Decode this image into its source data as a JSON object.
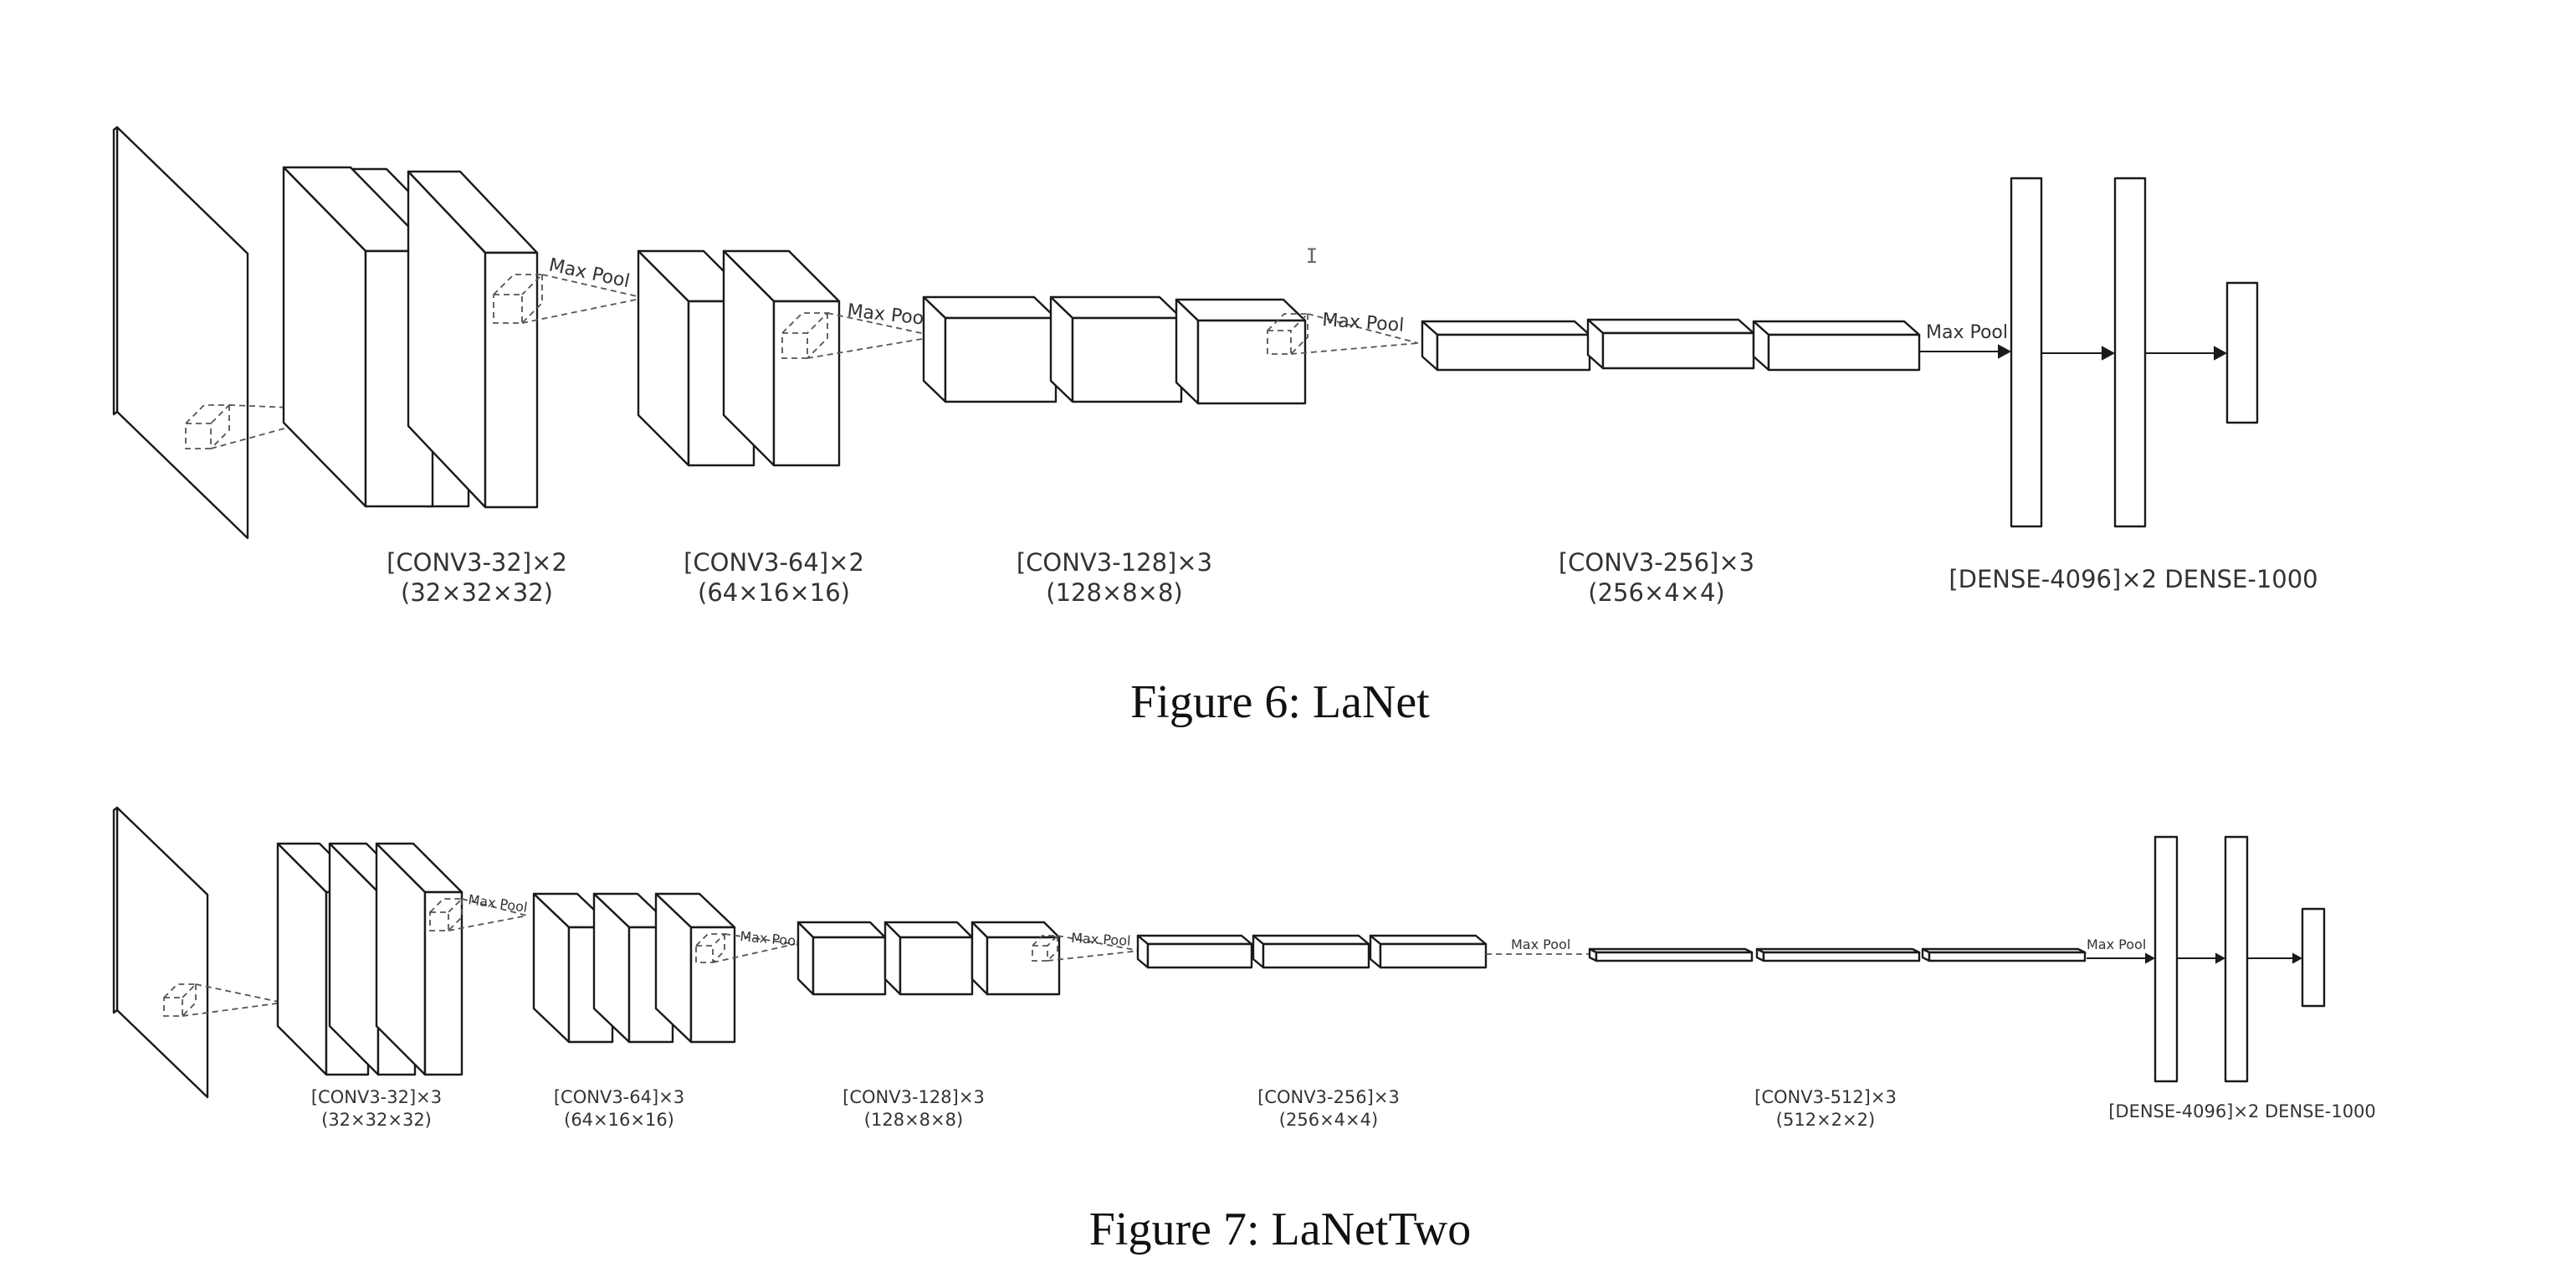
{
  "figures": [
    {
      "caption": "Figure 6: LaNet",
      "pool_label": "Max Pool",
      "blocks": [
        {
          "label": "[CONV3-32]×2",
          "shape": "(32×32×32)"
        },
        {
          "label": "[CONV3-64]×2",
          "shape": "(64×16×16)"
        },
        {
          "label": "[CONV3-128]×3",
          "shape": "(128×8×8)"
        },
        {
          "label": "[CONV3-256]×3",
          "shape": "(256×4×4)"
        }
      ],
      "dense_label": "[DENSE-4096]×2 DENSE-1000"
    },
    {
      "caption": "Figure 7: LaNetTwo",
      "pool_label": "Max Pool",
      "blocks": [
        {
          "label": "[CONV3-32]×3",
          "shape": "(32×32×32)"
        },
        {
          "label": "[CONV3-64]×3",
          "shape": "(64×16×16)"
        },
        {
          "label": "[CONV3-128]×3",
          "shape": "(128×8×8)"
        },
        {
          "label": "[CONV3-256]×3",
          "shape": "(256×4×4)"
        },
        {
          "label": "[CONV3-512]×3",
          "shape": "(512×2×2)"
        }
      ],
      "dense_label": "[DENSE-4096]×2  DENSE-1000"
    }
  ],
  "cursor_glyph": "I"
}
